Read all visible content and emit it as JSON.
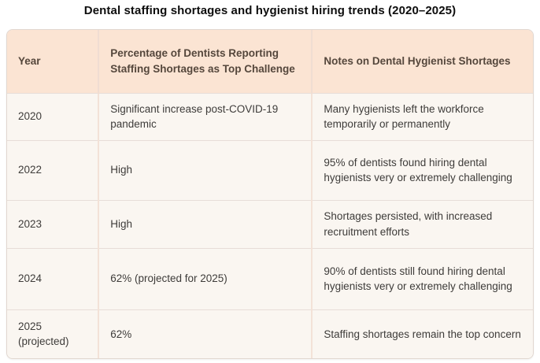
{
  "title": "Dental staffing shortages and hygienist hiring trends (2020–2025)",
  "chart_data": {
    "type": "table",
    "title": "Dental staffing shortages and hygienist hiring trends (2020–2025)",
    "columns": [
      "Year",
      "Percentage of Dentists Reporting Staffing Shortages as Top Challenge",
      "Notes on Dental Hygienist Shortages"
    ],
    "rows": [
      [
        "2020",
        "Significant increase post-COVID-19 pandemic",
        "Many hygienists left the workforce temporarily or permanently"
      ],
      [
        "2022",
        "High",
        "95% of dentists found hiring dental hygienists very or extremely challenging"
      ],
      [
        "2023",
        "High",
        "Shortages persisted, with increased recruitment efforts"
      ],
      [
        "2024",
        "62% (projected for 2025)",
        "90% of dentists still found hiring dental hygienists very or extremely challenging"
      ],
      [
        "2025 (projected)",
        "62%",
        "Staffing shortages remain the top concern"
      ]
    ]
  },
  "colors": {
    "header_bg": "#fbe4d3",
    "body_bg": "#faf6f1",
    "row_divider": "#e7ddd8",
    "column_divider": "#f3e2d7",
    "outer_border": "#e1d7d0",
    "header_text": "#55473c",
    "body_text": "#3e3c3a",
    "title_text": "#0e0e0e"
  }
}
